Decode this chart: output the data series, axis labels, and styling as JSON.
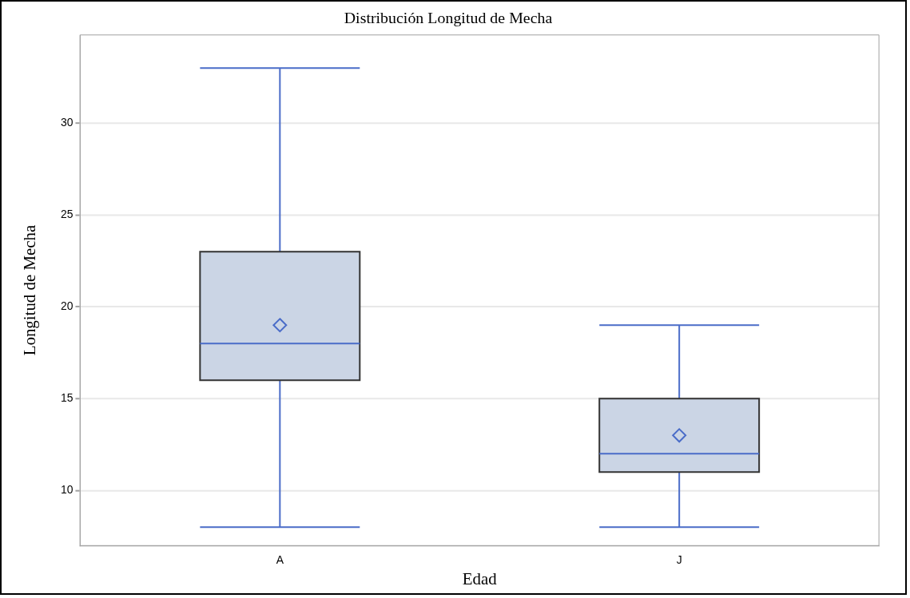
{
  "chart_data": {
    "type": "box",
    "title": "Distribución Longitud de Mecha",
    "xlabel": "Edad",
    "ylabel": "Longitud de Mecha",
    "categories": [
      "A",
      "J"
    ],
    "series": [
      {
        "color": "#cbd5e5",
        "boxes": [
          {
            "low": 8,
            "q1": 16,
            "median": 18,
            "q3": 23,
            "high": 33,
            "mean": 19
          },
          {
            "low": 8,
            "q1": 11,
            "median": 12,
            "q3": 15,
            "high": 19,
            "mean": 13
          }
        ]
      }
    ],
    "ylim": [
      7,
      34.8
    ],
    "yticks": [
      10,
      15,
      20,
      25,
      30
    ],
    "grid": "y",
    "legend": false
  }
}
